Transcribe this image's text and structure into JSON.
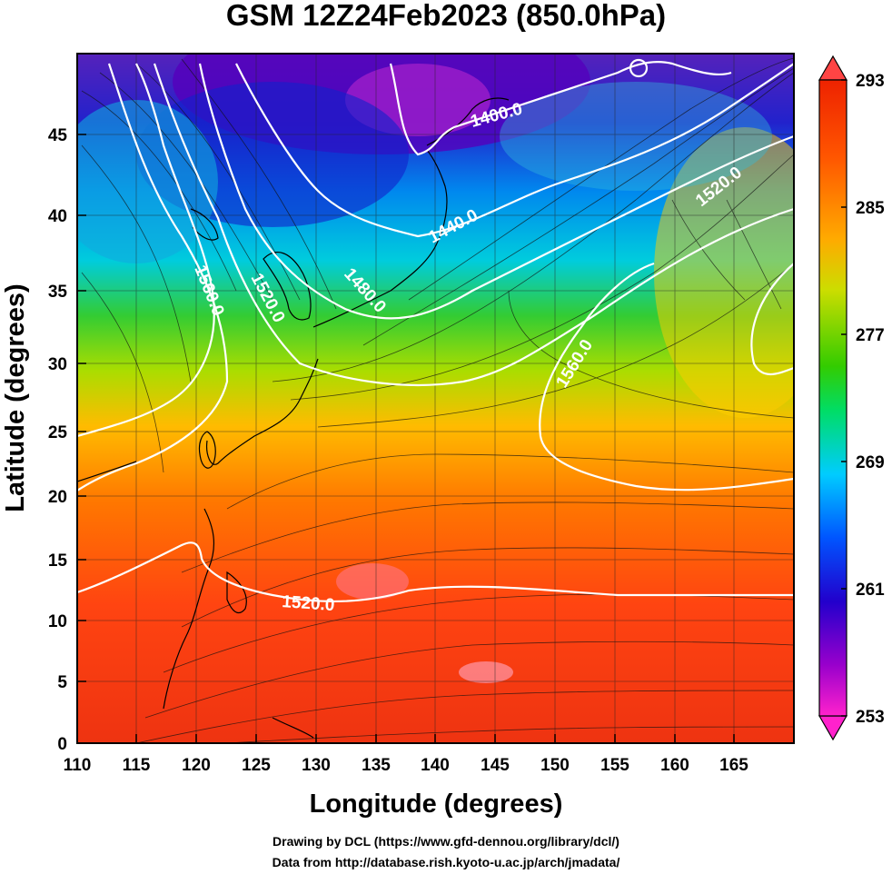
{
  "title": "GSM 12Z24Feb2023 (850.0hPa)",
  "x_axis": {
    "label": "Longitude (degrees)",
    "ticks": [
      "110",
      "115",
      "120",
      "125",
      "130",
      "135",
      "140",
      "145",
      "150",
      "155",
      "160",
      "165"
    ],
    "range": [
      110,
      170
    ]
  },
  "y_axis": {
    "label": "Latitude  (degrees)",
    "ticks": [
      "0",
      "5",
      "10",
      "15",
      "20",
      "25",
      "30",
      "35",
      "40",
      "45"
    ],
    "range": [
      0,
      50
    ]
  },
  "colorbar": {
    "ticks": [
      "293",
      "285",
      "277",
      "269",
      "261",
      "253"
    ],
    "range": [
      253,
      293
    ],
    "colors": [
      "#ff22cc",
      "#9900cc",
      "#2200cc",
      "#0055ff",
      "#00ccff",
      "#00dd66",
      "#33cc00",
      "#ccdd00",
      "#ffaa00",
      "#ff5500",
      "#ee2200"
    ]
  },
  "contours": [
    {
      "label": "1400.0"
    },
    {
      "label": "1440.0"
    },
    {
      "label": "1480.0"
    },
    {
      "label": "1520.0"
    },
    {
      "label": "1560.0"
    },
    {
      "label": "1520.0"
    },
    {
      "label": "1560.0"
    },
    {
      "label": "1520.0"
    }
  ],
  "credits": {
    "line1": "Drawing by DCL (https://www.gfd-dennou.org/library/dcl/)",
    "line2": "Data from http://database.rish.kyoto-u.ac.jp/arch/jmadata/"
  },
  "chart_data": {
    "type": "heatmap",
    "title": "GSM 12Z24Feb2023 (850.0hPa)",
    "xlabel": "Longitude (degrees)",
    "ylabel": "Latitude  (degrees)",
    "xlim": [
      110,
      170
    ],
    "ylim": [
      0,
      50
    ],
    "colorbar_range": [
      253,
      293
    ],
    "grid": true,
    "contour_levels": [
      1400,
      1440,
      1480,
      1520,
      1560
    ]
  }
}
